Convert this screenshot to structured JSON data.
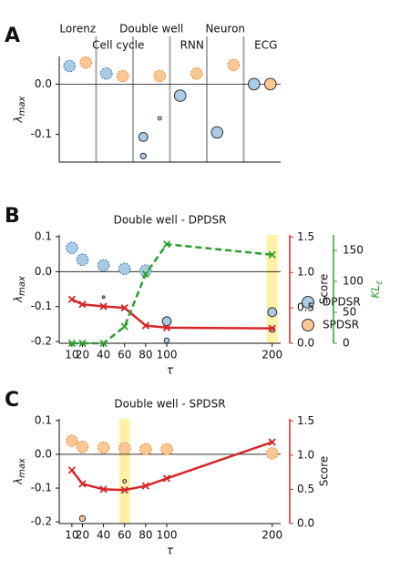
{
  "chart_data": [
    {
      "type": "scatter",
      "panel_label": "A",
      "categories": [
        "Lorenz",
        "Cell cycle",
        "Double well",
        "RNN",
        "Neuron",
        "ECG"
      ],
      "series": [
        {
          "name": "DPDSR",
          "color": "#a9cbe6",
          "edge": "#3a78b0",
          "values": [
            [
              0.036
            ],
            [
              0.021
            ],
            [
              -0.105,
              -0.143
            ],
            [
              -0.023
            ],
            [
              -0.096
            ],
            [
              0.0
            ]
          ],
          "sizes": [
            [
              40
            ],
            [
              40
            ],
            [
              24,
              10
            ],
            [
              40
            ],
            [
              40
            ],
            [
              40
            ]
          ]
        },
        {
          "name": "SPDSR",
          "color": "#fcc794",
          "edge": "#e8893a",
          "values": [
            [
              0.043
            ],
            [
              0.016
            ],
            [
              0.016,
              -0.068
            ],
            [
              0.021
            ],
            [
              0.038
            ],
            [
              0.0
            ]
          ],
          "sizes": [
            [
              40
            ],
            [
              40
            ],
            [
              40,
              4
            ],
            [
              40
            ],
            [
              40
            ],
            [
              40
            ]
          ]
        }
      ],
      "y_label": {
        "main": "λ",
        "sub": "max"
      },
      "ylim": [
        -0.155,
        0.055
      ],
      "yticks": [
        {
          "value": 0,
          "label": "0.0"
        },
        -0.1
      ],
      "legend": "right"
    },
    {
      "type": "combo",
      "panel_label": "B",
      "title": "Double well - DPDSR",
      "title_color": "#2f7fbf",
      "x": [
        10,
        20,
        40,
        60,
        80,
        100,
        200
      ],
      "xlim": [
        -2,
        208
      ],
      "xticks": [
        10,
        20,
        40,
        60,
        80,
        100,
        200
      ],
      "x_label": "τ",
      "ylim": [
        -0.205,
        0.105
      ],
      "yticks": [
        0.1,
        {
          "value": 0,
          "label": "0.0"
        },
        -0.1,
        -0.2
      ],
      "y_label": {
        "main": "λ",
        "sub": "max"
      },
      "points": {
        "color": "#a9cbe6",
        "edge": "#3a78b0",
        "values": [
          [
            0.068
          ],
          [
            0.034
          ],
          [
            0.018,
            -0.073
          ],
          [
            0.008
          ],
          [
            0.003
          ],
          [
            -0.142,
            -0.197
          ],
          [
            -0.116,
            -0.166
          ]
        ],
        "sizes": [
          [
            40
          ],
          [
            40
          ],
          [
            40,
            2
          ],
          [
            40
          ],
          [
            40
          ],
          [
            24,
            8
          ],
          [
            24,
            8
          ]
        ]
      },
      "series": [
        {
          "color": "#d62728",
          "axis": "y2",
          "dash": false,
          "values": [
            0.62,
            0.55,
            0.52,
            0.5,
            0.25,
            0.22,
            0.21
          ]
        },
        {
          "color": "#2ca02c",
          "axis": "y3",
          "dash": true,
          "values": [
            0,
            0,
            0,
            27,
            112,
            160,
            143
          ]
        }
      ],
      "y2lim": [
        0,
        1.53
      ],
      "y2ticks": [
        1.5,
        {
          "value": 1,
          "label": "1.0"
        },
        0.5,
        {
          "value": 0,
          "label": "0.0"
        }
      ],
      "y2_label": "Score",
      "y3lim": [
        0,
        175
      ],
      "y3ticks": [
        150,
        100,
        50,
        0
      ],
      "y3_label": {
        "main": "KL",
        "sub": "ε"
      },
      "highlight": 200,
      "highlight_color": "#fff1a8"
    },
    {
      "type": "combo",
      "panel_label": "C",
      "title": "Double well - SPDSR",
      "title_color": "#f0993a",
      "x": [
        10,
        20,
        40,
        60,
        80,
        100,
        200
      ],
      "xlim": [
        -2,
        208
      ],
      "xticks": [
        10,
        20,
        40,
        60,
        80,
        100,
        200
      ],
      "x_label": "τ",
      "ylim": [
        -0.205,
        0.105
      ],
      "yticks": [
        0.1,
        {
          "value": 0,
          "label": "0.0"
        },
        -0.1,
        -0.2
      ],
      "y_label": {
        "main": "λ",
        "sub": "max"
      },
      "points": {
        "color": "#fcc794",
        "edge": "#e8893a",
        "values": [
          [
            0.04
          ],
          [
            0.022,
            -0.19
          ],
          [
            0.02
          ],
          [
            0.018,
            -0.08
          ],
          [
            0.015
          ],
          [
            0.015
          ],
          [
            0.003
          ]
        ],
        "sizes": [
          [
            40
          ],
          [
            40,
            10
          ],
          [
            40
          ],
          [
            40,
            4
          ],
          [
            40
          ],
          [
            40
          ],
          [
            40
          ]
        ]
      },
      "series": [
        {
          "color": "#d62728",
          "axis": "y2",
          "dash": false,
          "values": [
            0.78,
            0.58,
            0.5,
            0.49,
            0.55,
            0.66,
            1.19
          ]
        }
      ],
      "y2lim": [
        0,
        1.53
      ],
      "y2ticks": [
        1.5,
        {
          "value": 1,
          "label": "1.0"
        },
        0.5,
        {
          "value": 0,
          "label": "0.0"
        }
      ],
      "y2_label": "Score",
      "highlight": 60,
      "highlight_color": "#fff1a8"
    }
  ]
}
